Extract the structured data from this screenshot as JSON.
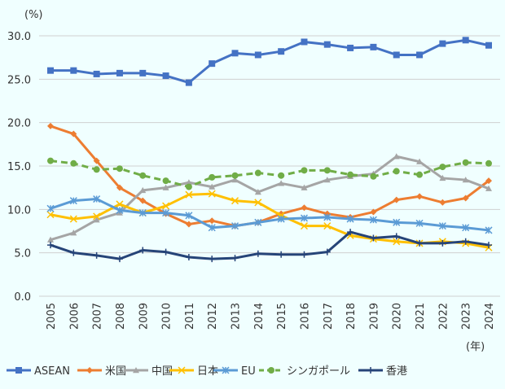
{
  "chart_data": {
    "type": "line",
    "ylabel": "(%)",
    "xlabel": "(年)",
    "ylim": [
      0,
      30
    ],
    "yticks": [
      "0.0",
      "5.0",
      "10.0",
      "15.0",
      "20.0",
      "25.0",
      "30.0"
    ],
    "grid": true,
    "legend": "bottom",
    "categories": [
      "2005",
      "2006",
      "2007",
      "2008",
      "2009",
      "2010",
      "2011",
      "2012",
      "2013",
      "2014",
      "2015",
      "2016",
      "2017",
      "2018",
      "2019",
      "2020",
      "2021",
      "2022",
      "2023",
      "2024"
    ],
    "series": [
      {
        "name": "ASEAN",
        "color": "#4472c4",
        "marker": "square",
        "dash": false,
        "values": [
          26.0,
          26.0,
          25.6,
          25.7,
          25.7,
          25.4,
          24.6,
          26.8,
          28.0,
          27.8,
          28.2,
          29.3,
          29.0,
          28.6,
          28.7,
          27.8,
          27.8,
          29.1,
          29.5,
          28.9
        ]
      },
      {
        "name": "米国",
        "color": "#ed7d31",
        "marker": "diamond",
        "dash": false,
        "values": [
          19.6,
          18.7,
          15.6,
          12.5,
          11.0,
          9.5,
          8.3,
          8.7,
          8.1,
          8.5,
          9.5,
          10.2,
          9.5,
          9.1,
          9.7,
          11.1,
          11.5,
          10.8,
          11.3,
          13.3
        ]
      },
      {
        "name": "中国",
        "color": "#a5a5a5",
        "marker": "triangle",
        "dash": false,
        "values": [
          6.5,
          7.3,
          8.8,
          9.6,
          12.2,
          12.5,
          13.1,
          12.6,
          13.4,
          12.0,
          13.0,
          12.5,
          13.4,
          13.8,
          14.1,
          16.1,
          15.5,
          13.6,
          13.4,
          12.4
        ]
      },
      {
        "name": "日本",
        "color": "#ffc000",
        "marker": "x",
        "dash": false,
        "values": [
          9.4,
          8.9,
          9.2,
          10.6,
          9.6,
          10.4,
          11.7,
          11.8,
          11.0,
          10.8,
          9.3,
          8.1,
          8.1,
          7.0,
          6.6,
          6.3,
          6.1,
          6.3,
          6.1,
          5.6
        ]
      },
      {
        "name": "EU",
        "color": "#5b9bd5",
        "marker": "asterisk",
        "dash": false,
        "values": [
          10.1,
          11.0,
          11.2,
          9.9,
          9.6,
          9.6,
          9.3,
          7.9,
          8.1,
          8.5,
          8.9,
          9.0,
          9.1,
          8.9,
          8.8,
          8.5,
          8.4,
          8.1,
          7.9,
          7.6
        ]
      },
      {
        "name": "シンガポール",
        "color": "#70ad47",
        "marker": "circle",
        "dash": true,
        "values": [
          15.6,
          15.3,
          14.6,
          14.7,
          13.9,
          13.3,
          12.6,
          13.7,
          13.9,
          14.2,
          13.9,
          14.5,
          14.5,
          14.0,
          13.8,
          14.4,
          14.0,
          14.9,
          15.4,
          15.3
        ]
      },
      {
        "name": "香港",
        "color": "#264478",
        "marker": "plus",
        "dash": false,
        "values": [
          5.9,
          5.0,
          4.7,
          4.3,
          5.3,
          5.1,
          4.5,
          4.3,
          4.4,
          4.9,
          4.8,
          4.8,
          5.1,
          7.4,
          6.7,
          6.9,
          6.1,
          6.1,
          6.3,
          5.9
        ]
      }
    ]
  }
}
